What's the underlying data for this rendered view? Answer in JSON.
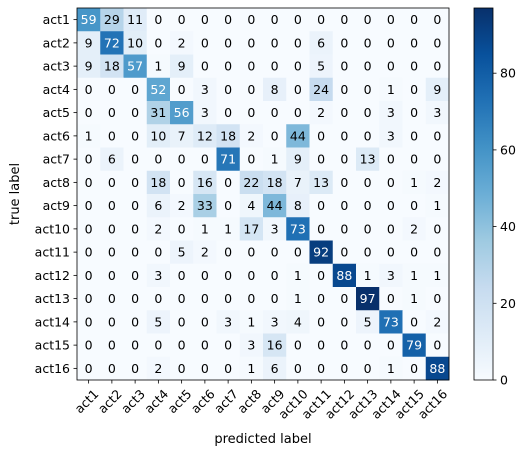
{
  "chart_data": {
    "type": "heatmap",
    "title": "",
    "xlabel": "predicted label",
    "ylabel": "true label",
    "colormap": "Blues",
    "vmin": 0,
    "vmax": 97,
    "x_categories": [
      "act1",
      "act2",
      "act3",
      "act4",
      "act5",
      "act6",
      "act7",
      "act8",
      "act9",
      "act10",
      "act11",
      "act12",
      "act13",
      "act14",
      "act15",
      "act16"
    ],
    "y_categories": [
      "act1",
      "act2",
      "act3",
      "act4",
      "act5",
      "act6",
      "act7",
      "act8",
      "act9",
      "act10",
      "act11",
      "act12",
      "act13",
      "act14",
      "act15",
      "act16"
    ],
    "values": [
      [
        59,
        29,
        11,
        0,
        0,
        0,
        0,
        0,
        0,
        0,
        0,
        0,
        0,
        0,
        0,
        0
      ],
      [
        9,
        72,
        10,
        0,
        2,
        0,
        0,
        0,
        0,
        0,
        6,
        0,
        0,
        0,
        0,
        0
      ],
      [
        9,
        18,
        57,
        1,
        9,
        0,
        0,
        0,
        0,
        0,
        5,
        0,
        0,
        0,
        0,
        0
      ],
      [
        0,
        0,
        0,
        52,
        0,
        3,
        0,
        0,
        8,
        0,
        24,
        0,
        0,
        1,
        0,
        9
      ],
      [
        0,
        0,
        0,
        31,
        56,
        3,
        0,
        0,
        0,
        0,
        2,
        0,
        0,
        3,
        0,
        3
      ],
      [
        1,
        0,
        0,
        10,
        7,
        12,
        18,
        2,
        0,
        44,
        0,
        0,
        0,
        3,
        0,
        0
      ],
      [
        0,
        6,
        0,
        0,
        0,
        0,
        71,
        0,
        1,
        9,
        0,
        0,
        13,
        0,
        0,
        0
      ],
      [
        0,
        0,
        0,
        18,
        0,
        16,
        0,
        22,
        18,
        7,
        13,
        0,
        0,
        0,
        1,
        2
      ],
      [
        0,
        0,
        0,
        6,
        2,
        33,
        0,
        4,
        44,
        8,
        0,
        0,
        0,
        0,
        0,
        1
      ],
      [
        0,
        0,
        0,
        2,
        0,
        1,
        1,
        17,
        3,
        73,
        0,
        0,
        0,
        0,
        2,
        0
      ],
      [
        0,
        0,
        0,
        0,
        5,
        2,
        0,
        0,
        0,
        0,
        92,
        0,
        0,
        0,
        0,
        0
      ],
      [
        0,
        0,
        0,
        3,
        0,
        0,
        0,
        0,
        0,
        1,
        0,
        88,
        1,
        3,
        1,
        1
      ],
      [
        0,
        0,
        0,
        0,
        0,
        0,
        0,
        0,
        0,
        1,
        0,
        0,
        97,
        0,
        1,
        0
      ],
      [
        0,
        0,
        0,
        5,
        0,
        0,
        3,
        1,
        3,
        4,
        0,
        0,
        5,
        73,
        0,
        2
      ],
      [
        0,
        0,
        0,
        0,
        0,
        0,
        0,
        3,
        16,
        0,
        0,
        0,
        0,
        0,
        79,
        0
      ],
      [
        0,
        0,
        0,
        2,
        0,
        0,
        0,
        1,
        6,
        0,
        0,
        0,
        0,
        1,
        0,
        88
      ]
    ],
    "colorbar_ticks": [
      0,
      20,
      40,
      60,
      80
    ]
  }
}
